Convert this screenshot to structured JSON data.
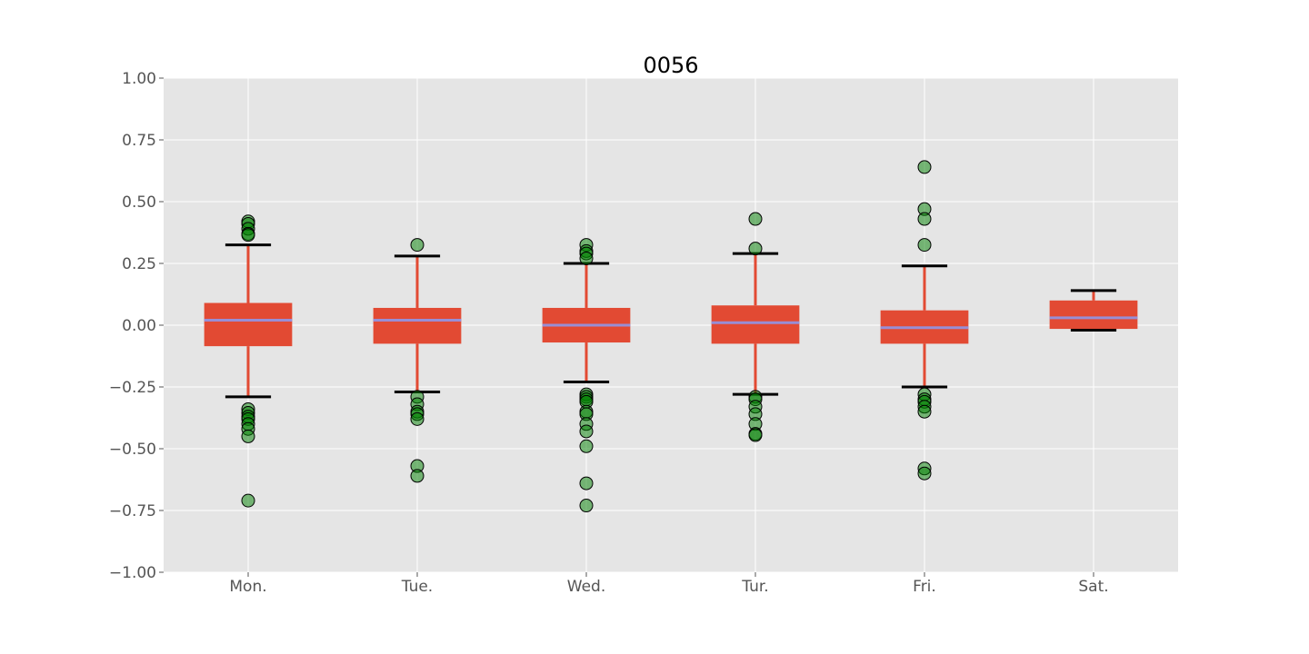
{
  "chart_data": {
    "type": "box",
    "title": "0056",
    "xlabel": "",
    "ylabel": "",
    "ylim": [
      -1.0,
      1.0
    ],
    "yticks": [
      1.0,
      0.75,
      0.5,
      0.25,
      0.0,
      -0.25,
      -0.5,
      -0.75,
      -1.0
    ],
    "ytick_labels": [
      "1.00",
      "0.75",
      "0.50",
      "0.25",
      "0.00",
      "−0.25",
      "−0.50",
      "−0.75",
      "−1.00"
    ],
    "grid": true,
    "categories": [
      "Mon.",
      "Tue.",
      "Wed.",
      "Tur.",
      "Fri.",
      "Sat."
    ],
    "boxes": [
      {
        "q1": -0.085,
        "median": 0.02,
        "q3": 0.09,
        "whisker_low": -0.29,
        "whisker_high": 0.325,
        "outliers": [
          0.42,
          0.41,
          0.39,
          0.37,
          0.365,
          -0.34,
          -0.355,
          -0.37,
          -0.38,
          -0.4,
          -0.42,
          -0.45,
          -0.71
        ]
      },
      {
        "q1": -0.075,
        "median": 0.02,
        "q3": 0.07,
        "whisker_low": -0.27,
        "whisker_high": 0.28,
        "outliers": [
          0.325,
          -0.29,
          -0.32,
          -0.35,
          -0.36,
          -0.38,
          -0.57,
          -0.61
        ]
      },
      {
        "q1": -0.07,
        "median": 0.0,
        "q3": 0.07,
        "whisker_low": -0.23,
        "whisker_high": 0.25,
        "outliers": [
          0.325,
          0.3,
          0.29,
          0.27,
          -0.28,
          -0.29,
          -0.3,
          -0.31,
          -0.35,
          -0.36,
          -0.4,
          -0.43,
          -0.49,
          -0.64,
          -0.73
        ]
      },
      {
        "q1": -0.075,
        "median": 0.01,
        "q3": 0.08,
        "whisker_low": -0.28,
        "whisker_high": 0.29,
        "outliers": [
          0.43,
          0.31,
          -0.29,
          -0.3,
          -0.33,
          -0.36,
          -0.4,
          -0.44,
          -0.445
        ]
      },
      {
        "q1": -0.075,
        "median": -0.01,
        "q3": 0.06,
        "whisker_low": -0.25,
        "whisker_high": 0.24,
        "outliers": [
          0.64,
          0.47,
          0.43,
          0.325,
          -0.28,
          -0.3,
          -0.31,
          -0.33,
          -0.35,
          -0.58,
          -0.6
        ]
      },
      {
        "q1": -0.015,
        "median": 0.03,
        "q3": 0.1,
        "whisker_low": -0.02,
        "whisker_high": 0.14,
        "outliers": []
      }
    ],
    "colors": {
      "plot_background": "#e5e5e5",
      "grid": "#ffffff",
      "box_fill": "#e24a33",
      "whisker": "#e24a33",
      "cap": "#000000",
      "median": "#988ed5",
      "outlier_fill": "#008000",
      "outlier_edge": "#000000"
    }
  }
}
